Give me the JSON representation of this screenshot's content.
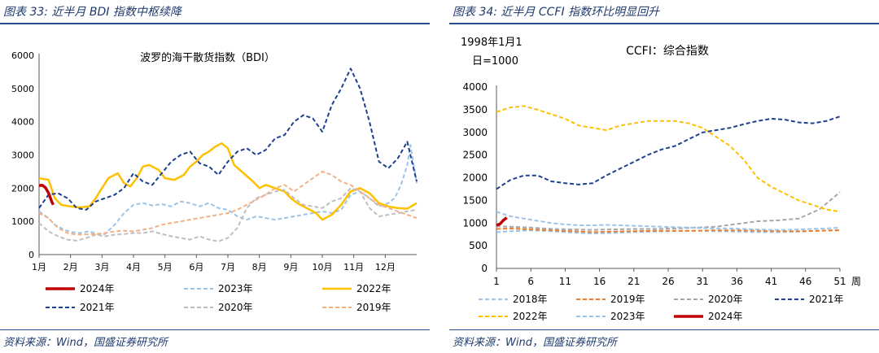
{
  "left": {
    "title": "图表 33:  近半月 BDI 指数中枢续降",
    "source": "资料来源：Wind，国盛证券研究所",
    "chart_data": {
      "type": "line",
      "title": "波罗的海干散货指数（BDI）",
      "ylim": [
        0,
        6000
      ],
      "yticks": [
        "0",
        "1000",
        "2000",
        "3000",
        "4000",
        "5000",
        "6000"
      ],
      "categories": [
        "1月",
        "2月",
        "3月",
        "4月",
        "5月",
        "6月",
        "7月",
        "8月",
        "9月",
        "10月",
        "11月",
        "12月"
      ],
      "xlabel": "",
      "ylabel": "",
      "legend_position": "bottom",
      "series": [
        {
          "name": "2024年",
          "color": "#c00000",
          "dash": "solid",
          "width": 3.5,
          "x": [
            0,
            0.1,
            0.2,
            0.3,
            0.4,
            0.45
          ],
          "values": [
            2080,
            2090,
            2020,
            1860,
            1600,
            1500
          ]
        },
        {
          "name": "2023年",
          "color": "#9dc3e6",
          "dash": "dashed",
          "width": 2,
          "x": [
            0,
            0.3,
            0.5,
            0.8,
            1.0,
            1.3,
            1.6,
            1.9,
            2.1,
            2.4,
            2.7,
            3.0,
            3.3,
            3.6,
            3.9,
            4.2,
            4.5,
            4.8,
            5.1,
            5.4,
            5.7,
            6.0,
            6.3,
            6.6,
            6.9,
            7.2,
            7.5,
            7.8,
            8.1,
            8.4,
            8.7,
            9.0,
            9.3,
            9.6,
            9.9,
            10.2,
            10.5,
            10.8,
            11.1,
            11.3,
            11.5,
            11.7,
            11.8,
            12.0
          ],
          "values": [
            1300,
            1100,
            900,
            750,
            680,
            650,
            700,
            600,
            620,
            900,
            1250,
            1500,
            1550,
            1480,
            1520,
            1450,
            1600,
            1550,
            1450,
            1550,
            1400,
            1350,
            1150,
            1050,
            1150,
            1100,
            1050,
            1100,
            1150,
            1200,
            1250,
            1300,
            1250,
            1350,
            1800,
            1900,
            1700,
            1450,
            1550,
            1700,
            2100,
            2700,
            3300,
            2150
          ]
        },
        {
          "name": "2022年",
          "color": "#ffc000",
          "dash": "solid",
          "width": 2.5,
          "x": [
            0,
            0.3,
            0.5,
            0.7,
            1.0,
            1.3,
            1.6,
            1.8,
            2.0,
            2.2,
            2.5,
            2.7,
            2.9,
            3.1,
            3.3,
            3.5,
            3.8,
            4.0,
            4.3,
            4.6,
            4.8,
            5.0,
            5.2,
            5.4,
            5.6,
            5.8,
            6.0,
            6.2,
            6.5,
            6.8,
            7.0,
            7.2,
            7.5,
            7.8,
            8.0,
            8.2,
            8.5,
            8.8,
            9.0,
            9.3,
            9.6,
            9.9,
            10.2,
            10.5,
            10.8,
            11.1,
            11.4,
            11.7,
            12.0
          ],
          "values": [
            2300,
            2250,
            1700,
            1500,
            1450,
            1420,
            1450,
            1700,
            2000,
            2300,
            2450,
            2150,
            2050,
            2300,
            2650,
            2700,
            2550,
            2300,
            2250,
            2400,
            2650,
            2800,
            3000,
            3100,
            3250,
            3350,
            3200,
            2700,
            2450,
            2200,
            2000,
            2100,
            2000,
            1900,
            1700,
            1550,
            1400,
            1250,
            1050,
            1200,
            1500,
            1900,
            2000,
            1850,
            1550,
            1450,
            1400,
            1380,
            1550
          ]
        },
        {
          "name": "2021年",
          "color": "#1f3f8f",
          "dash": "dashed",
          "width": 2,
          "x": [
            0,
            0.3,
            0.6,
            0.9,
            1.2,
            1.5,
            1.8,
            2.1,
            2.4,
            2.7,
            3.0,
            3.3,
            3.6,
            3.9,
            4.2,
            4.5,
            4.8,
            5.1,
            5.4,
            5.7,
            6.0,
            6.3,
            6.6,
            6.9,
            7.2,
            7.5,
            7.8,
            8.1,
            8.4,
            8.7,
            9.0,
            9.3,
            9.6,
            9.9,
            10.2,
            10.5,
            10.8,
            11.1,
            11.4,
            11.7,
            12.0
          ],
          "values": [
            1400,
            1800,
            1850,
            1700,
            1400,
            1350,
            1600,
            1700,
            1800,
            2000,
            2450,
            2200,
            2100,
            2450,
            2800,
            3000,
            3100,
            2750,
            2650,
            2400,
            2800,
            3100,
            3200,
            3000,
            3150,
            3500,
            3600,
            4000,
            4200,
            4100,
            3700,
            4500,
            5000,
            5600,
            5000,
            4000,
            2800,
            2600,
            2900,
            3400,
            2200
          ]
        },
        {
          "name": "2020年",
          "color": "#bfbfbf",
          "dash": "dashed",
          "width": 2,
          "x": [
            0,
            0.3,
            0.6,
            0.9,
            1.2,
            1.5,
            1.8,
            2.1,
            2.4,
            2.7,
            3.0,
            3.3,
            3.6,
            3.9,
            4.2,
            4.5,
            4.8,
            5.1,
            5.4,
            5.7,
            6.0,
            6.3,
            6.6,
            6.9,
            7.2,
            7.5,
            7.8,
            8.1,
            8.4,
            8.7,
            9.0,
            9.3,
            9.6,
            9.9,
            10.2,
            10.5,
            10.8,
            11.1,
            11.4,
            11.7,
            12.0
          ],
          "values": [
            950,
            700,
            550,
            450,
            420,
            500,
            600,
            550,
            600,
            620,
            650,
            650,
            700,
            620,
            550,
            500,
            450,
            550,
            450,
            400,
            500,
            800,
            1400,
            1700,
            1800,
            1900,
            1950,
            1700,
            1500,
            1450,
            1400,
            1600,
            1700,
            2000,
            1900,
            1400,
            1150,
            1200,
            1250,
            1300,
            1350
          ]
        },
        {
          "name": "2019年",
          "color": "#f4b183",
          "dash": "dashed",
          "width": 2,
          "x": [
            0,
            0.3,
            0.6,
            0.9,
            1.2,
            1.5,
            1.8,
            2.1,
            2.4,
            2.7,
            3.0,
            3.3,
            3.6,
            3.9,
            4.2,
            4.5,
            4.8,
            5.1,
            5.4,
            5.7,
            6.0,
            6.3,
            6.6,
            6.9,
            7.2,
            7.5,
            7.8,
            8.1,
            8.4,
            8.7,
            9.0,
            9.3,
            9.6,
            9.9,
            10.2,
            10.5,
            10.8,
            11.1,
            11.4,
            11.7,
            12.0
          ],
          "values": [
            1250,
            1100,
            800,
            650,
            600,
            610,
            620,
            650,
            700,
            720,
            700,
            750,
            800,
            900,
            950,
            1000,
            1050,
            1100,
            1150,
            1200,
            1250,
            1350,
            1500,
            1650,
            1800,
            2000,
            2100,
            1900,
            2100,
            2300,
            2500,
            2400,
            2200,
            2100,
            1900,
            1700,
            1500,
            1400,
            1300,
            1200,
            1100
          ]
        }
      ]
    }
  },
  "right": {
    "title": "图表 34:  近半月 CCFI 指数环比明显回升",
    "source": "资料来源：Wind，国盛证券研究所",
    "chart_data": {
      "type": "line",
      "title": "CCFI：综合指数",
      "base_note_line1": "1998年1月1",
      "base_note_line2": "日=1000",
      "ylim": [
        0,
        4000
      ],
      "yticks": [
        "0",
        "500",
        "1000",
        "1500",
        "2000",
        "2500",
        "3000",
        "3500",
        "4000"
      ],
      "xlim": [
        1,
        51
      ],
      "xticks": [
        "1",
        "6",
        "11",
        "16",
        "21",
        "26",
        "31",
        "36",
        "41",
        "46",
        "51"
      ],
      "xunit": "周",
      "xlabel": "",
      "ylabel": "",
      "legend_position": "bottom",
      "series": [
        {
          "name": "2018年",
          "color": "#9dc3e6",
          "dash": "dashed",
          "width": 2,
          "x": [
            1,
            3,
            6,
            9,
            12,
            15,
            18,
            21,
            24,
            27,
            30,
            33,
            36,
            39,
            42,
            45,
            48,
            51
          ],
          "values": [
            800,
            820,
            840,
            820,
            790,
            770,
            780,
            800,
            810,
            820,
            830,
            820,
            810,
            800,
            800,
            810,
            830,
            850
          ]
        },
        {
          "name": "2019年",
          "color": "#ed7d31",
          "dash": "dashed",
          "width": 2,
          "x": [
            1,
            3,
            6,
            9,
            12,
            15,
            18,
            21,
            24,
            27,
            30,
            33,
            36,
            39,
            42,
            45,
            48,
            51
          ],
          "values": [
            870,
            880,
            860,
            840,
            820,
            800,
            810,
            820,
            830,
            830,
            830,
            840,
            840,
            830,
            820,
            820,
            830,
            840
          ]
        },
        {
          "name": "2020年",
          "color": "#a6a6a6",
          "dash": "dashed",
          "width": 2,
          "x": [
            1,
            3,
            6,
            9,
            12,
            15,
            18,
            21,
            24,
            27,
            30,
            33,
            36,
            39,
            42,
            45,
            48,
            51
          ],
          "values": [
            930,
            920,
            900,
            870,
            860,
            850,
            860,
            870,
            870,
            880,
            900,
            920,
            980,
            1040,
            1060,
            1100,
            1300,
            1680
          ]
        },
        {
          "name": "2021年",
          "color": "#1f3f8f",
          "dash": "dashed",
          "width": 2,
          "x": [
            1,
            3,
            5,
            7,
            9,
            11,
            13,
            15,
            17,
            19,
            21,
            23,
            25,
            27,
            29,
            31,
            33,
            35,
            37,
            39,
            41,
            43,
            45,
            47,
            49,
            51
          ],
          "values": [
            1750,
            1950,
            2050,
            2050,
            1920,
            1880,
            1850,
            1880,
            2050,
            2200,
            2350,
            2500,
            2620,
            2700,
            2850,
            3000,
            3050,
            3100,
            3180,
            3250,
            3300,
            3280,
            3220,
            3200,
            3250,
            3350
          ]
        },
        {
          "name": "2022年",
          "color": "#ffc000",
          "dash": "dashed",
          "width": 2,
          "x": [
            1,
            3,
            5,
            7,
            9,
            11,
            13,
            15,
            17,
            19,
            21,
            23,
            25,
            27,
            29,
            31,
            33,
            35,
            37,
            39,
            41,
            43,
            45,
            47,
            49,
            51
          ],
          "values": [
            3450,
            3550,
            3580,
            3500,
            3400,
            3300,
            3150,
            3100,
            3050,
            3150,
            3200,
            3250,
            3250,
            3250,
            3200,
            3100,
            2900,
            2700,
            2400,
            2000,
            1800,
            1650,
            1500,
            1400,
            1300,
            1250
          ]
        },
        {
          "name": "2023年",
          "color": "#9dc3e6",
          "dash": "dashed",
          "width": 2,
          "x": [
            1,
            3,
            5,
            7,
            9,
            11,
            13,
            15,
            17,
            19,
            21,
            23,
            25,
            27,
            29,
            31,
            33,
            35,
            37,
            39,
            41,
            43,
            45,
            47,
            49,
            51
          ],
          "values": [
            1250,
            1150,
            1100,
            1050,
            1000,
            970,
            950,
            950,
            960,
            950,
            940,
            930,
            920,
            910,
            900,
            890,
            880,
            880,
            870,
            860,
            850,
            850,
            860,
            870,
            880,
            900
          ]
        },
        {
          "name": "2024年",
          "color": "#c00000",
          "dash": "solid",
          "width": 3.5,
          "x": [
            1,
            1.5,
            2,
            2.5
          ],
          "values": [
            950,
            980,
            1060,
            1120
          ]
        }
      ]
    }
  }
}
